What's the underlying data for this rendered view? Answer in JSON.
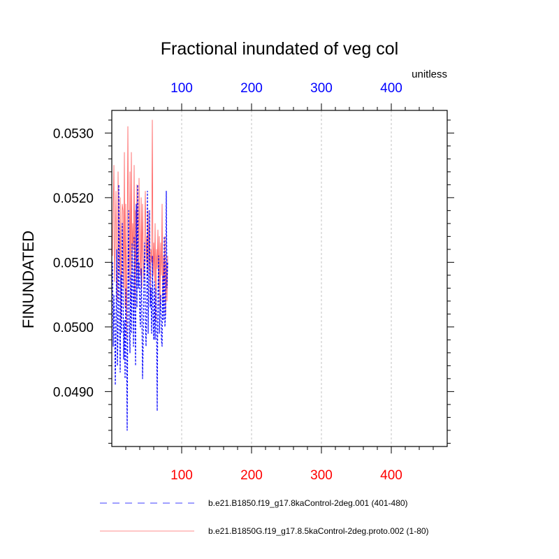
{
  "chart_data": {
    "type": "line",
    "title": "Fractional inundated of veg col",
    "units_label": "unitless",
    "ylabel": "FINUNDATED",
    "xlabel": "",
    "xlim": [
      0,
      480
    ],
    "ylim": [
      0.04815,
      0.05335
    ],
    "x_ticks_major": [
      100,
      200,
      300,
      400
    ],
    "x_tick_labels": [
      "100",
      "200",
      "300",
      "400"
    ],
    "y_ticks_major": [
      0.049,
      0.05,
      0.051,
      0.052,
      0.053
    ],
    "y_tick_labels": [
      "0.0490",
      "0.0500",
      "0.0510",
      "0.0520",
      "0.0530"
    ],
    "grid": "vertical dashed at major x ticks",
    "legend_position": "bottom",
    "colors": {
      "series_a": "#0000ff",
      "series_b": "#ff6666",
      "bottom_ticks": "#ff0000",
      "top_ticks": "#0000ff"
    },
    "series": [
      {
        "name": "b.e21.B1850.f19_g17.8kaControl-2deg.001 (401-480)",
        "color": "#0000ff",
        "dash": "dashed",
        "x": [
          1,
          2,
          3,
          4,
          5,
          6,
          7,
          8,
          9,
          10,
          11,
          12,
          13,
          14,
          15,
          16,
          17,
          18,
          19,
          20,
          21,
          22,
          23,
          24,
          25,
          26,
          27,
          28,
          29,
          30,
          31,
          32,
          33,
          34,
          35,
          36,
          37,
          38,
          39,
          40,
          41,
          42,
          43,
          44,
          45,
          46,
          47,
          48,
          49,
          50,
          51,
          52,
          53,
          54,
          55,
          56,
          57,
          58,
          59,
          60,
          61,
          62,
          63,
          64,
          65,
          66,
          67,
          68,
          69,
          70,
          71,
          72,
          73,
          74,
          75,
          76,
          77,
          78,
          79,
          80
        ],
        "y": [
          0.051,
          0.0497,
          0.0505,
          0.0501,
          0.0491,
          0.05,
          0.0512,
          0.0494,
          0.0499,
          0.0522,
          0.0503,
          0.0493,
          0.0508,
          0.0499,
          0.0516,
          0.0508,
          0.0495,
          0.0501,
          0.0492,
          0.0506,
          0.0499,
          0.0484,
          0.0504,
          0.0518,
          0.0501,
          0.0496,
          0.0508,
          0.0499,
          0.0513,
          0.0506,
          0.0497,
          0.0514,
          0.0502,
          0.0494,
          0.0519,
          0.0503,
          0.0522,
          0.0506,
          0.051,
          0.0502,
          0.05,
          0.0509,
          0.0503,
          0.0492,
          0.0498,
          0.0508,
          0.0513,
          0.0501,
          0.0497,
          0.0504,
          0.0521,
          0.0499,
          0.0508,
          0.0518,
          0.0503,
          0.0506,
          0.0499,
          0.0511,
          0.0502,
          0.0498,
          0.0507,
          0.0498,
          0.0506,
          0.0501,
          0.0487,
          0.0505,
          0.0511,
          0.0499,
          0.0502,
          0.0505,
          0.0498,
          0.0497,
          0.0508,
          0.0501,
          0.0514,
          0.05,
          0.0502,
          0.0521,
          0.0506,
          0.051
        ]
      },
      {
        "name": "b.e21.B1850G.f19_g17.8.5kaControl-2deg.proto.002 (1-80)",
        "color": "#ff6666",
        "dash": "solid",
        "x": [
          1,
          2,
          3,
          4,
          5,
          6,
          7,
          8,
          9,
          10,
          11,
          12,
          13,
          14,
          15,
          16,
          17,
          18,
          19,
          20,
          21,
          22,
          23,
          24,
          25,
          26,
          27,
          28,
          29,
          30,
          31,
          32,
          33,
          34,
          35,
          36,
          37,
          38,
          39,
          40,
          41,
          42,
          43,
          44,
          45,
          46,
          47,
          48,
          49,
          50,
          51,
          52,
          53,
          54,
          55,
          56,
          57,
          58,
          59,
          60,
          61,
          62,
          63,
          64,
          65,
          66,
          67,
          68,
          69,
          70,
          71,
          72,
          73,
          74,
          75,
          76,
          77,
          78,
          79,
          80
        ],
        "y": [
          0.0511,
          0.0518,
          0.0525,
          0.0507,
          0.0513,
          0.0521,
          0.0509,
          0.0504,
          0.0524,
          0.0512,
          0.0508,
          0.052,
          0.0501,
          0.0515,
          0.0519,
          0.0518,
          0.0506,
          0.0527,
          0.0503,
          0.0519,
          0.0498,
          0.051,
          0.0531,
          0.0513,
          0.0507,
          0.0524,
          0.0504,
          0.0527,
          0.0509,
          0.0516,
          0.0512,
          0.0525,
          0.0503,
          0.0518,
          0.0509,
          0.0522,
          0.0513,
          0.0507,
          0.0523,
          0.0512,
          0.0508,
          0.052,
          0.0506,
          0.0519,
          0.0511,
          0.0507,
          0.0515,
          0.0521,
          0.051,
          0.0514,
          0.0508,
          0.0518,
          0.0509,
          0.0516,
          0.0504,
          0.0512,
          0.051,
          0.0532,
          0.0508,
          0.0513,
          0.0507,
          0.0516,
          0.0501,
          0.0512,
          0.0509,
          0.0515,
          0.0506,
          0.0514,
          0.0503,
          0.0513,
          0.0508,
          0.0519,
          0.0504,
          0.0511,
          0.0507,
          0.0514,
          0.0502,
          0.051,
          0.0504,
          0.0511
        ]
      }
    ]
  }
}
